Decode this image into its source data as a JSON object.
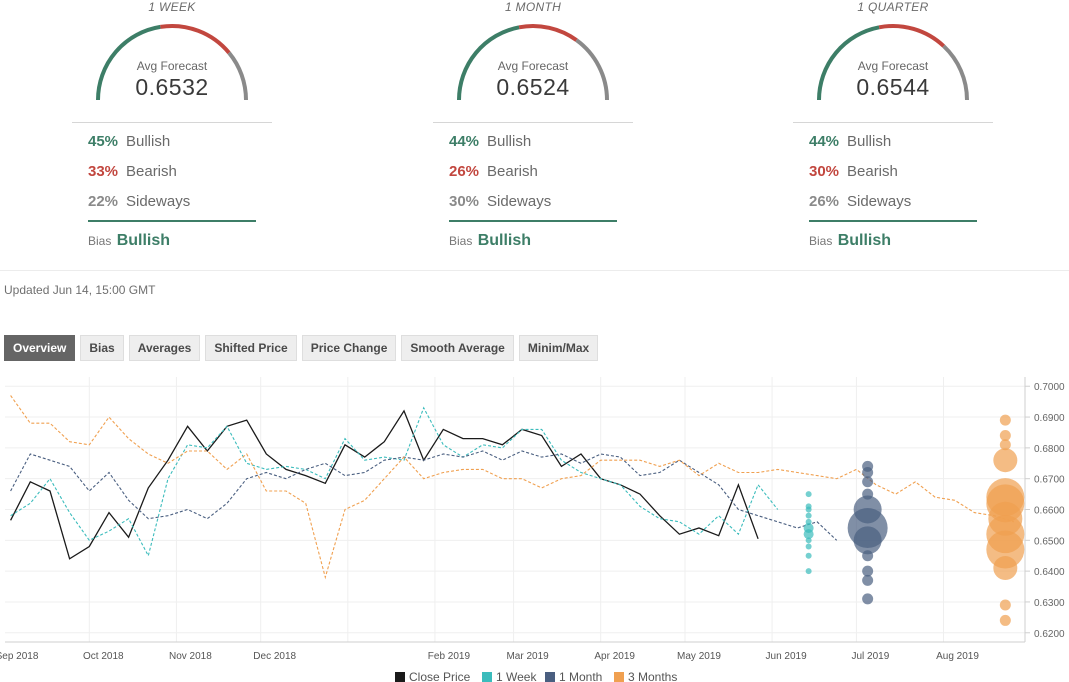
{
  "forecasts": [
    {
      "period": "1 WEEK",
      "avg_label": "Avg Forecast",
      "avg_value": "0.6532",
      "bullish_pct": "45%",
      "bullish_label": "Bullish",
      "bearish_pct": "33%",
      "bearish_label": "Bearish",
      "sideways_pct": "22%",
      "sideways_label": "Sideways",
      "bias_label": "Bias",
      "bias_value": "Bullish"
    },
    {
      "period": "1 MONTH",
      "avg_label": "Avg Forecast",
      "avg_value": "0.6524",
      "bullish_pct": "44%",
      "bullish_label": "Bullish",
      "bearish_pct": "26%",
      "bearish_label": "Bearish",
      "sideways_pct": "30%",
      "sideways_label": "Sideways",
      "bias_label": "Bias",
      "bias_value": "Bullish"
    },
    {
      "period": "1 QUARTER",
      "avg_label": "Avg Forecast",
      "avg_value": "0.6544",
      "bullish_pct": "44%",
      "bullish_label": "Bullish",
      "bearish_pct": "30%",
      "bearish_label": "Bearish",
      "sideways_pct": "26%",
      "sideways_label": "Sideways",
      "bias_label": "Bias",
      "bias_value": "Bullish"
    }
  ],
  "colors": {
    "bullish": "#3d7e67",
    "bearish": "#c2473f",
    "sideways": "#8a8a8a",
    "close": "#1a1a1a",
    "week": "#3bbcbc",
    "month": "#4a5f80",
    "quarter": "#f0a050"
  },
  "updated": "Updated Jun 14, 15:00 GMT",
  "tabs": [
    "Overview",
    "Bias",
    "Averages",
    "Shifted Price",
    "Price Change",
    "Smooth Average",
    "Minim/Max"
  ],
  "active_tab": "Overview",
  "chart_data": {
    "type": "line",
    "x_labels": [
      "Sep 2018",
      "Oct 2018",
      "Nov 2018",
      "Dec 2018",
      "Feb 2019",
      "Mar 2019",
      "Apr 2019",
      "May 2019",
      "Jun 2019",
      "Jul 2019",
      "Aug 2019"
    ],
    "x_range": [
      "2018-09-01",
      "2019-08-30"
    ],
    "y_ticks": [
      "0.7000",
      "0.6900",
      "0.6800",
      "0.6700",
      "0.6600",
      "0.6500",
      "0.6400",
      "0.6300",
      "0.6200"
    ],
    "ylim": [
      0.617,
      0.703
    ],
    "legend": [
      "Close Price",
      "1 Week",
      "1 Month",
      "3 Months"
    ],
    "legend_position": "bottom",
    "series": [
      {
        "name": "Close Price",
        "style": "solid",
        "x": [
          "2018-09-03",
          "2018-09-10",
          "2018-09-17",
          "2018-09-24",
          "2018-10-01",
          "2018-10-08",
          "2018-10-15",
          "2018-10-22",
          "2018-10-29",
          "2018-11-05",
          "2018-11-12",
          "2018-11-19",
          "2018-11-26",
          "2018-12-03",
          "2018-12-10",
          "2018-12-17",
          "2018-12-24",
          "2018-12-31",
          "2019-01-07",
          "2019-01-14",
          "2019-01-21",
          "2019-01-28",
          "2019-02-04",
          "2019-02-11",
          "2019-02-18",
          "2019-02-25",
          "2019-03-04",
          "2019-03-11",
          "2019-03-18",
          "2019-03-25",
          "2019-04-01",
          "2019-04-08",
          "2019-04-15",
          "2019-04-22",
          "2019-04-29",
          "2019-05-06",
          "2019-05-13",
          "2019-05-20",
          "2019-05-27",
          "2019-06-03",
          "2019-06-10"
        ],
        "y": [
          0.6565,
          0.669,
          0.666,
          0.644,
          0.648,
          0.659,
          0.651,
          0.667,
          0.676,
          0.687,
          0.679,
          0.687,
          0.689,
          0.678,
          0.673,
          0.671,
          0.6685,
          0.681,
          0.677,
          0.682,
          0.692,
          0.676,
          0.686,
          0.683,
          0.683,
          0.681,
          0.686,
          0.684,
          0.674,
          0.678,
          0.67,
          0.668,
          0.665,
          0.658,
          0.652,
          0.654,
          0.6515,
          0.668,
          0.6505,
          null,
          null
        ]
      },
      {
        "name": "1 Week",
        "style": "dashed",
        "x": [
          "2018-09-03",
          "2018-09-10",
          "2018-09-17",
          "2018-09-24",
          "2018-10-01",
          "2018-10-08",
          "2018-10-15",
          "2018-10-22",
          "2018-10-29",
          "2018-11-05",
          "2018-11-12",
          "2018-11-19",
          "2018-11-26",
          "2018-12-03",
          "2018-12-10",
          "2018-12-17",
          "2018-12-24",
          "2018-12-31",
          "2019-01-07",
          "2019-01-14",
          "2019-01-21",
          "2019-01-28",
          "2019-02-04",
          "2019-02-11",
          "2019-02-18",
          "2019-02-25",
          "2019-03-04",
          "2019-03-11",
          "2019-03-18",
          "2019-03-25",
          "2019-04-01",
          "2019-04-08",
          "2019-04-15",
          "2019-04-22",
          "2019-04-29",
          "2019-05-06",
          "2019-05-13",
          "2019-05-20",
          "2019-05-27",
          "2019-06-03",
          "2019-06-10"
        ],
        "y": [
          0.658,
          0.662,
          0.67,
          0.659,
          0.65,
          0.653,
          0.657,
          0.645,
          0.67,
          0.681,
          0.68,
          0.687,
          0.675,
          0.673,
          0.674,
          0.673,
          0.67,
          0.683,
          0.676,
          0.677,
          0.676,
          0.693,
          0.681,
          0.677,
          0.681,
          0.68,
          0.686,
          0.686,
          0.676,
          0.672,
          0.67,
          0.668,
          0.661,
          0.657,
          0.656,
          0.652,
          0.658,
          0.652,
          0.668,
          0.66,
          null
        ]
      },
      {
        "name": "1 Month",
        "style": "dashed",
        "x": [
          "2018-09-03",
          "2018-09-10",
          "2018-09-17",
          "2018-09-24",
          "2018-10-01",
          "2018-10-08",
          "2018-10-15",
          "2018-10-22",
          "2018-10-29",
          "2018-11-05",
          "2018-11-12",
          "2018-11-19",
          "2018-11-26",
          "2018-12-03",
          "2018-12-10",
          "2018-12-17",
          "2018-12-24",
          "2018-12-31",
          "2019-01-07",
          "2019-01-14",
          "2019-01-21",
          "2019-01-28",
          "2019-02-04",
          "2019-02-11",
          "2019-02-18",
          "2019-02-25",
          "2019-03-04",
          "2019-03-11",
          "2019-03-18",
          "2019-03-25",
          "2019-04-01",
          "2019-04-08",
          "2019-04-15",
          "2019-04-22",
          "2019-04-29",
          "2019-05-06",
          "2019-05-13",
          "2019-05-20",
          "2019-05-27",
          "2019-06-03",
          "2019-06-10",
          "2019-06-17",
          "2019-06-24"
        ],
        "y": [
          0.666,
          0.678,
          0.676,
          0.674,
          0.666,
          0.672,
          0.663,
          0.657,
          0.658,
          0.66,
          0.657,
          0.662,
          0.67,
          0.672,
          0.67,
          0.673,
          0.675,
          0.671,
          0.672,
          0.676,
          0.677,
          0.676,
          0.678,
          0.677,
          0.679,
          0.676,
          0.679,
          0.677,
          0.678,
          0.675,
          0.678,
          0.677,
          0.671,
          0.672,
          0.676,
          0.672,
          0.668,
          0.66,
          0.658,
          0.656,
          0.654,
          0.656,
          0.65
        ]
      },
      {
        "name": "3 Months",
        "style": "dashed",
        "x": [
          "2018-09-03",
          "2018-09-10",
          "2018-09-17",
          "2018-09-24",
          "2018-10-01",
          "2018-10-08",
          "2018-10-15",
          "2018-10-22",
          "2018-10-29",
          "2018-11-05",
          "2018-11-12",
          "2018-11-19",
          "2018-11-26",
          "2018-12-03",
          "2018-12-10",
          "2018-12-17",
          "2018-12-24",
          "2018-12-31",
          "2019-01-07",
          "2019-01-14",
          "2019-01-21",
          "2019-01-28",
          "2019-02-04",
          "2019-02-11",
          "2019-02-18",
          "2019-02-25",
          "2019-03-04",
          "2019-03-11",
          "2019-03-18",
          "2019-03-25",
          "2019-04-01",
          "2019-04-08",
          "2019-04-15",
          "2019-04-22",
          "2019-04-29",
          "2019-05-06",
          "2019-05-13",
          "2019-05-20",
          "2019-05-27",
          "2019-06-03",
          "2019-06-10",
          "2019-06-17",
          "2019-06-24",
          "2019-07-01",
          "2019-07-08",
          "2019-07-15",
          "2019-07-22",
          "2019-07-29",
          "2019-08-05",
          "2019-08-12",
          "2019-08-19",
          "2019-08-26"
        ],
        "y": [
          0.697,
          0.688,
          0.688,
          0.682,
          0.681,
          0.69,
          0.683,
          0.678,
          0.675,
          0.679,
          0.679,
          0.673,
          0.678,
          0.666,
          0.666,
          0.662,
          0.638,
          0.66,
          0.663,
          0.67,
          0.677,
          0.67,
          0.672,
          0.673,
          0.673,
          0.67,
          0.67,
          0.667,
          0.67,
          0.671,
          0.676,
          0.676,
          0.676,
          0.674,
          0.676,
          0.671,
          0.675,
          0.672,
          0.672,
          0.673,
          0.672,
          0.671,
          0.67,
          0.673,
          0.668,
          0.665,
          0.669,
          0.664,
          0.663,
          0.659,
          0.658,
          0.656
        ]
      }
    ],
    "bubbles": [
      {
        "series": "1 Week",
        "date": "2019-06-14",
        "values": [
          0.665,
          0.661,
          0.66,
          0.658,
          0.656,
          0.654,
          0.652,
          0.65,
          0.648,
          0.645,
          0.64
        ]
      },
      {
        "series": "1 Month",
        "date": "2019-07-05",
        "values": [
          0.674,
          0.672,
          0.669,
          0.665,
          0.66,
          0.654,
          0.65,
          0.645,
          0.64,
          0.637,
          0.631
        ]
      },
      {
        "series": "3 Months",
        "date": "2019-08-23",
        "values": [
          0.689,
          0.684,
          0.681,
          0.676,
          0.664,
          0.662,
          0.657,
          0.652,
          0.647,
          0.641,
          0.629,
          0.624
        ]
      }
    ]
  }
}
